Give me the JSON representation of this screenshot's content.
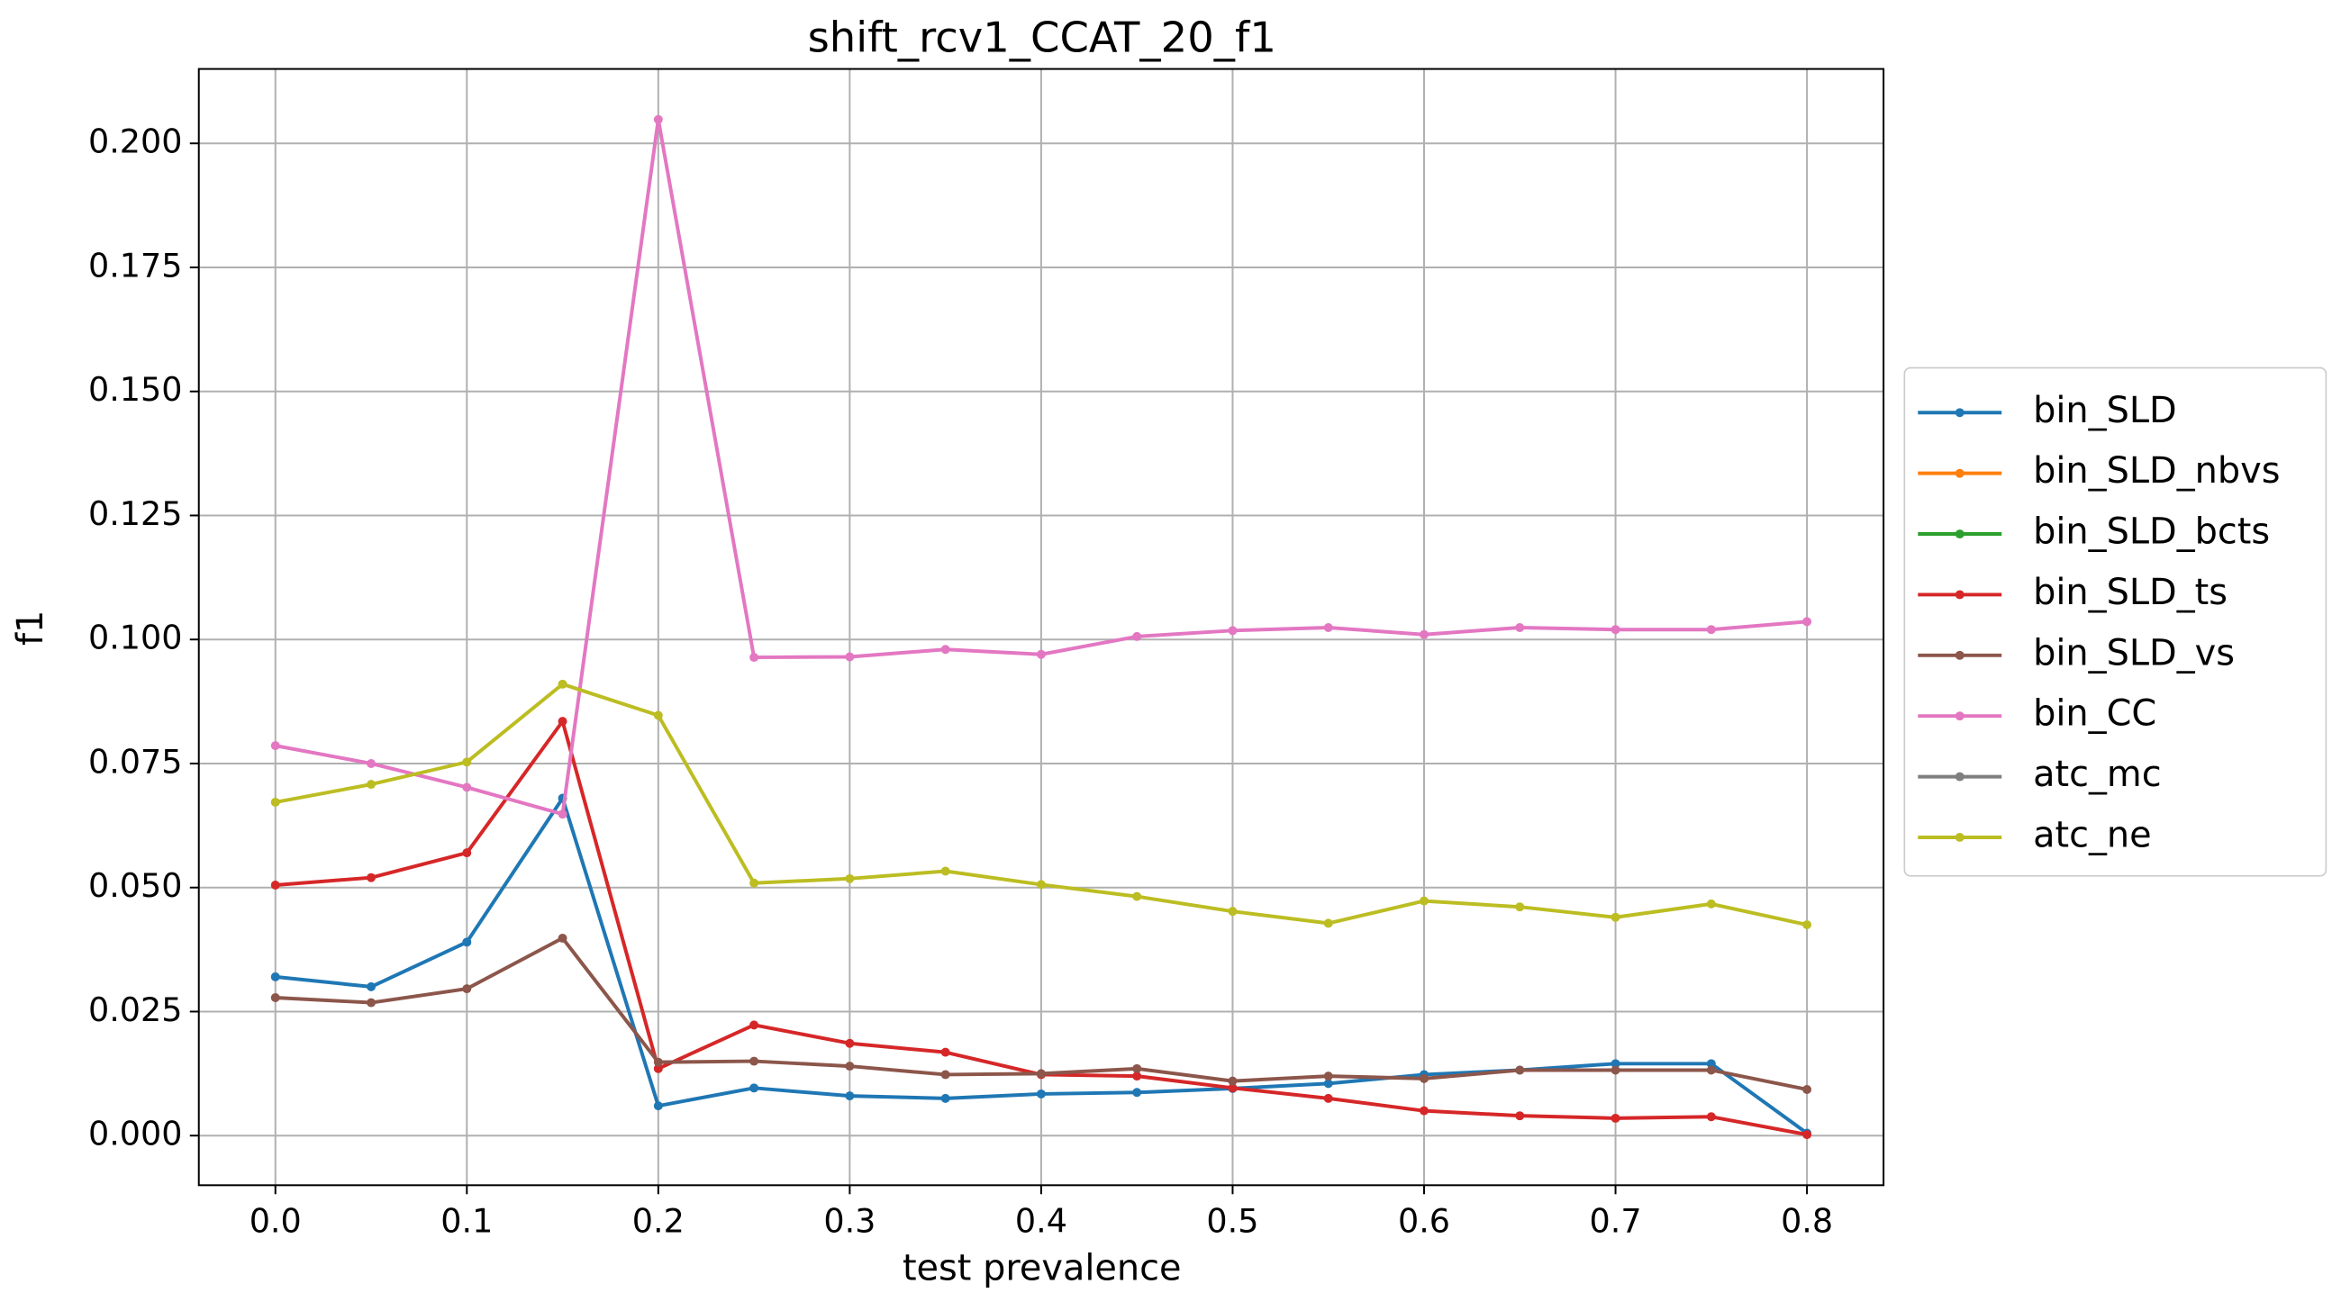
{
  "chart_data": {
    "type": "line",
    "title": "shift_rcv1_CCAT_20_f1",
    "xlabel": "test prevalence",
    "ylabel": "f1",
    "x": [
      0.0,
      0.05,
      0.1,
      0.15,
      0.2,
      0.25,
      0.3,
      0.35,
      0.4,
      0.45,
      0.5,
      0.55,
      0.6,
      0.65,
      0.7,
      0.75,
      0.8
    ],
    "xlim": [
      -0.04,
      0.84
    ],
    "xticks": [
      {
        "value": 0,
        "label": "0.0"
      },
      0.1,
      0.2,
      0.3,
      0.4,
      0.5,
      0.6,
      0.7,
      0.8
    ],
    "ylim": [
      -0.01,
      0.215
    ],
    "yticks": [
      {
        "value": 0,
        "label": "0.000"
      },
      {
        "value": 0.025,
        "label": "0.025"
      },
      {
        "value": 0.05,
        "label": "0.050"
      },
      {
        "value": 0.075,
        "label": "0.075"
      },
      {
        "value": 0.1,
        "label": "0.100"
      },
      {
        "value": 0.125,
        "label": "0.125"
      },
      {
        "value": 0.15,
        "label": "0.150"
      },
      {
        "value": 0.175,
        "label": "0.175"
      },
      {
        "value": 0.2,
        "label": "0.200"
      }
    ],
    "grid": true,
    "legend": "right",
    "series": [
      {
        "name": "bin_SLD",
        "color": "#1f77b4",
        "values": [
          0.032,
          0.03,
          0.039,
          0.068,
          0.006,
          0.0096,
          0.008,
          0.0075,
          0.0084,
          0.0087,
          0.0095,
          0.0105,
          0.0123,
          0.0132,
          0.0145,
          0.0145,
          0.0005
        ]
      },
      {
        "name": "bin_SLD_nbvs",
        "color": "#ff7f0e",
        "values": [
          null,
          null,
          null,
          null,
          null,
          null,
          null,
          null,
          null,
          null,
          null,
          null,
          null,
          null,
          null,
          null,
          null
        ]
      },
      {
        "name": "bin_SLD_bcts",
        "color": "#2ca02c",
        "values": [
          null,
          null,
          null,
          null,
          null,
          null,
          null,
          null,
          null,
          null,
          null,
          null,
          null,
          null,
          null,
          null,
          null
        ]
      },
      {
        "name": "bin_SLD_ts",
        "color": "#d62728",
        "values": [
          0.0505,
          0.052,
          0.057,
          0.0835,
          0.0135,
          0.0223,
          0.0186,
          0.0168,
          0.0123,
          0.012,
          0.0096,
          0.0075,
          0.005,
          0.004,
          0.0035,
          0.0038,
          0.0002
        ]
      },
      {
        "name": "bin_SLD_vs",
        "color": "#8c564b",
        "values": [
          0.0278,
          0.0268,
          0.0296,
          0.0398,
          0.0148,
          0.015,
          0.014,
          0.0123,
          0.0125,
          0.0135,
          0.011,
          0.012,
          0.0115,
          0.0132,
          0.0132,
          0.0132,
          0.0093
        ]
      },
      {
        "name": "bin_CC",
        "color": "#e377c2",
        "values": [
          0.0786,
          0.075,
          0.0702,
          0.0648,
          0.2048,
          0.0964,
          0.0965,
          0.098,
          0.097,
          0.1006,
          0.1018,
          0.1024,
          0.101,
          0.1024,
          0.102,
          0.102,
          0.1036
        ]
      },
      {
        "name": "atc_mc",
        "color": "#7f7f7f",
        "values": [
          null,
          null,
          null,
          null,
          null,
          null,
          null,
          null,
          null,
          null,
          null,
          null,
          null,
          null,
          null,
          null,
          null
        ]
      },
      {
        "name": "atc_ne",
        "color": "#bcbd22",
        "values": [
          0.0672,
          0.0708,
          0.0753,
          0.091,
          0.0847,
          0.0509,
          0.0518,
          0.0533,
          0.0506,
          0.0482,
          0.0452,
          0.0428,
          0.0473,
          0.0461,
          0.044,
          0.0467,
          0.0425
        ]
      }
    ]
  }
}
